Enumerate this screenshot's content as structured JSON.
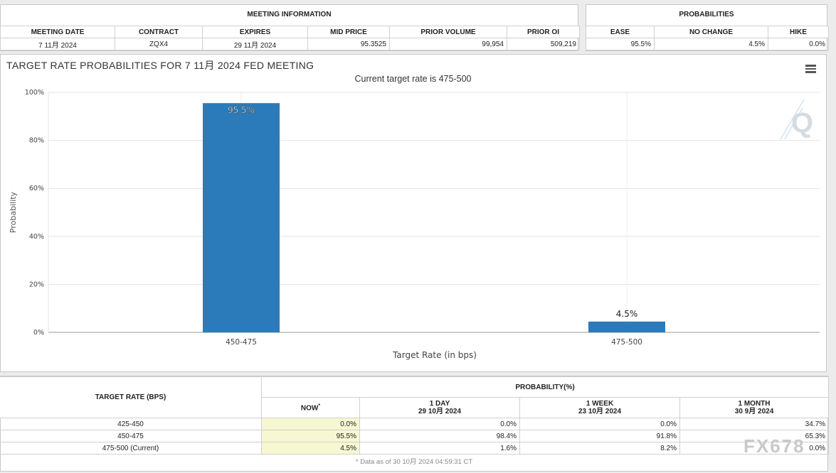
{
  "meeting_info": {
    "title": "MEETING INFORMATION",
    "headers": [
      "MEETING DATE",
      "CONTRACT",
      "EXPIRES",
      "MID PRICE",
      "PRIOR VOLUME",
      "PRIOR OI"
    ],
    "values": [
      "7 11月 2024",
      "ZQX4",
      "29 11月 2024",
      "95.3525",
      "99,954",
      "509,219"
    ]
  },
  "probabilities": {
    "title": "PROBABILITIES",
    "headers": [
      "EASE",
      "NO CHANGE",
      "HIKE"
    ],
    "values": [
      "95.5%",
      "4.5%",
      "0.0%"
    ]
  },
  "chart_panel": {
    "title": "TARGET RATE PROBABILITIES FOR 7 11月 2024 FED MEETING",
    "menu_icon": "hamburger-menu-icon",
    "logo_icon": "quikstrike-logo-icon"
  },
  "chart_data": {
    "type": "bar",
    "title": "",
    "subtitle": "Current target rate is 475-500",
    "categories": [
      "450-475",
      "475-500"
    ],
    "values": [
      95.5,
      4.5
    ],
    "data_labels": [
      "95.5%",
      "4.5%"
    ],
    "xlabel": "Target Rate (in bps)",
    "ylabel": "Probability",
    "ylim": [
      0,
      100
    ],
    "yticks": [
      "0%",
      "20%",
      "40%",
      "60%",
      "80%",
      "100%"
    ],
    "grid": true,
    "bar_color": "#2b7bba"
  },
  "bottom_table": {
    "target_rate_header": "TARGET RATE (BPS)",
    "probability_header": "PROBABILITY(%)",
    "columns": [
      {
        "label": "NOW",
        "marker": "*",
        "date": ""
      },
      {
        "label": "1 DAY",
        "date": "29 10月 2024"
      },
      {
        "label": "1 WEEK",
        "date": "23 10月 2024"
      },
      {
        "label": "1 MONTH",
        "date": "30 9月 2024"
      }
    ],
    "rows": [
      {
        "rate": "425-450",
        "now": "0.0%",
        "day": "0.0%",
        "week": "0.0%",
        "month": "34.7%"
      },
      {
        "rate": "450-475",
        "now": "95.5%",
        "day": "98.4%",
        "week": "91.8%",
        "month": "65.3%"
      },
      {
        "rate": "475-500 (Current)",
        "now": "4.5%",
        "day": "1.6%",
        "week": "8.2%",
        "month": "0.0%"
      }
    ],
    "footnote": "* Data as of 30 10月 2024 04:59:31 CT"
  },
  "watermark": "FX678"
}
